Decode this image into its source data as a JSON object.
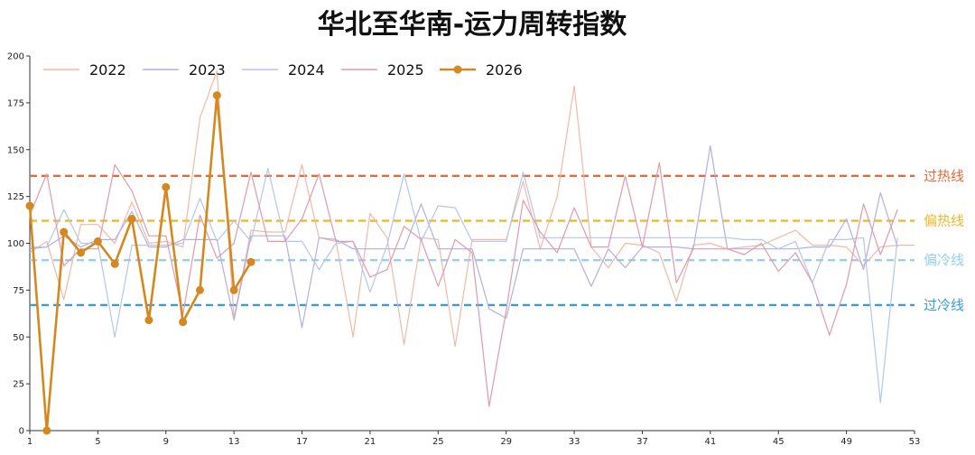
{
  "chart_data": {
    "type": "line",
    "title": "华北至华南-运力周转指数",
    "xlim": [
      1,
      53
    ],
    "ylim": [
      0,
      200
    ],
    "x_ticks": [
      1,
      5,
      9,
      13,
      17,
      21,
      25,
      29,
      33,
      37,
      41,
      45,
      49,
      53
    ],
    "y_ticks": [
      0,
      25,
      50,
      75,
      100,
      125,
      150,
      175,
      200
    ],
    "legend_position": "top-left",
    "grid": false,
    "reference_lines": [
      {
        "label": "过热线",
        "value": 136,
        "color": "#e8683c"
      },
      {
        "label": "偏热线",
        "value": 112,
        "color": "#f0b92c"
      },
      {
        "label": "偏冷线",
        "value": 91,
        "color": "#95d0f0"
      },
      {
        "label": "过冷线",
        "value": 67,
        "color": "#3a9ae0"
      }
    ],
    "series": [
      {
        "name": "2022",
        "color": "#f0b9a6",
        "width": 1.2,
        "markers": false,
        "values": [
          95,
          101,
          70,
          110,
          110,
          100,
          122,
          100,
          101,
          98,
          167,
          192,
          60,
          107,
          106,
          106,
          142,
          103,
          101,
          50,
          116,
          103,
          46,
          103,
          102,
          45,
          102,
          102,
          102,
          133,
          97,
          125,
          184,
          98,
          87,
          100,
          99,
          95,
          69,
          99,
          100,
          97,
          98,
          99,
          103,
          107,
          99,
          99,
          98,
          88,
          98,
          99,
          99
        ]
      },
      {
        "name": "2023",
        "color": "#b3afe0",
        "width": 1.2,
        "markers": false,
        "values": [
          97,
          98,
          104,
          98,
          102,
          102,
          117,
          98,
          98,
          102,
          102,
          102,
          59,
          104,
          104,
          104,
          55,
          103,
          102,
          97,
          97,
          97,
          97,
          121,
          97,
          97,
          97,
          65,
          60,
          97,
          97,
          97,
          97,
          77,
          97,
          87,
          98,
          98,
          98,
          97,
          152,
          97,
          97,
          97,
          97,
          97,
          98,
          98,
          113,
          86,
          127,
          98,
          null
        ]
      },
      {
        "name": "2024",
        "color": "#b3c6ee",
        "width": 1.2,
        "markers": false,
        "values": [
          98,
          98,
          118,
          100,
          100,
          50,
          99,
          99,
          99,
          100,
          124,
          101,
          112,
          101,
          140,
          101,
          101,
          86,
          100,
          101,
          74,
          99,
          137,
          101,
          120,
          119,
          101,
          101,
          101,
          138,
          103,
          103,
          103,
          103,
          103,
          103,
          103,
          103,
          103,
          103,
          103,
          103,
          102,
          102,
          97,
          101,
          79,
          102,
          102,
          103,
          15,
          103,
          null
        ]
      },
      {
        "name": "2025",
        "color": "#e09aab",
        "width": 1.2,
        "markers": false,
        "values": [
          115,
          137,
          88,
          97,
          97,
          142,
          128,
          104,
          104,
          62,
          115,
          92,
          100,
          138,
          101,
          101,
          113,
          137,
          101,
          101,
          82,
          86,
          109,
          102,
          77,
          102,
          95,
          13,
          64,
          123,
          106,
          95,
          119,
          98,
          98,
          136,
          98,
          143,
          79,
          97,
          97,
          97,
          94,
          100,
          85,
          95,
          79,
          51,
          78,
          121,
          94,
          118,
          null
        ]
      },
      {
        "name": "2026",
        "color": "#d4881e",
        "width": 2.6,
        "markers": true,
        "values": [
          120,
          0,
          106,
          95,
          101,
          89,
          113,
          59,
          130,
          58,
          75,
          179,
          75,
          90
        ]
      }
    ]
  }
}
